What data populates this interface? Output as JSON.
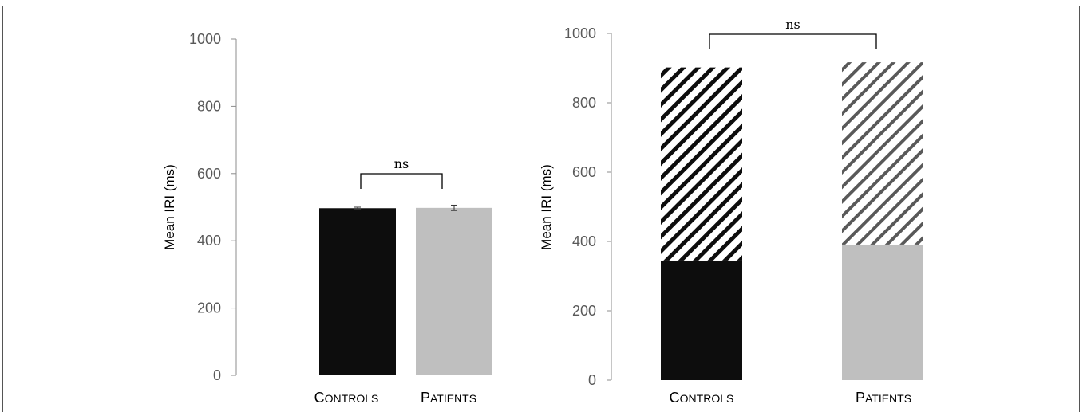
{
  "chart_data": [
    {
      "type": "bar",
      "categories": [
        "Controls",
        "Patients"
      ],
      "values": [
        497,
        498
      ],
      "error": [
        3,
        8
      ],
      "ylabel": "Mean IRI (ms)",
      "ylim": [
        0,
        1000
      ],
      "yticks": [
        0,
        200,
        400,
        600,
        800,
        1000
      ],
      "colors": [
        "#0d0d0d",
        "#bfbfbf"
      ],
      "annotation": "ns"
    },
    {
      "type": "bar",
      "stacked": true,
      "categories": [
        "Controls",
        "Patients"
      ],
      "series": [
        {
          "values": [
            345,
            391
          ],
          "colors": [
            "#0d0d0d",
            "#bfbfbf"
          ],
          "pattern": "solid"
        },
        {
          "values": [
            557,
            526
          ],
          "colors": [
            "#0d0d0d",
            "#595959"
          ],
          "pattern": "diagonal-hatch"
        }
      ],
      "ylabel": "Mean IRI (ms)",
      "ylim": [
        0,
        1000
      ],
      "yticks": [
        0,
        200,
        400,
        600,
        800,
        1000
      ],
      "annotation": "ns"
    }
  ]
}
